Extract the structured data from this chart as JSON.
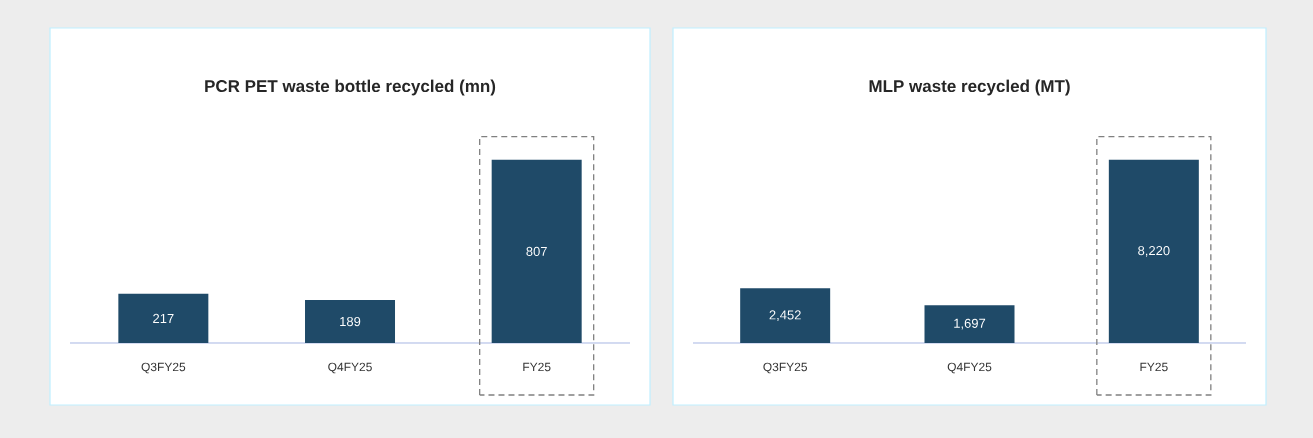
{
  "chart_data": [
    {
      "type": "bar",
      "title": "PCR PET waste bottle recycled (mn)",
      "categories": [
        "Q3FY25",
        "Q4FY25",
        "FY25"
      ],
      "values": [
        217,
        189,
        807
      ],
      "color": "#1f4a68",
      "data_labels": true
    },
    {
      "type": "bar",
      "title": "MLP waste recycled (MT)",
      "categories": [
        "Q3FY25",
        "Q4FY25",
        "FY25"
      ],
      "values": [
        2452,
        1697,
        8220
      ],
      "value_labels": [
        "2,452",
        "1,697",
        "8,220"
      ],
      "color": "#1f4a68"
    }
  ]
}
